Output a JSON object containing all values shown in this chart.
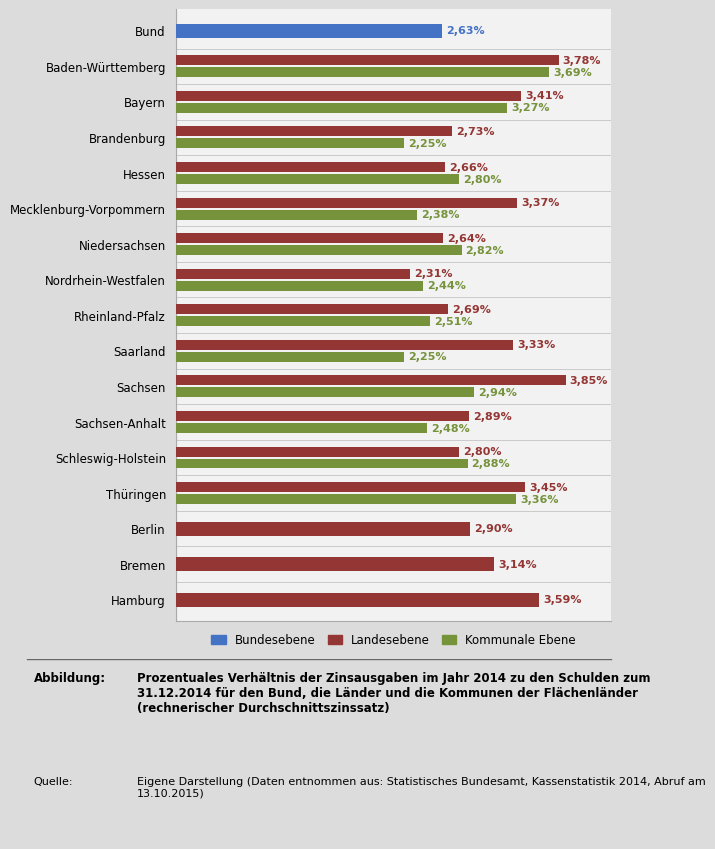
{
  "categories": [
    "Bund",
    "Baden-Württemberg",
    "Bayern",
    "Brandenburg",
    "Hessen",
    "Mecklenburg-Vorpommern",
    "Niedersachsen",
    "Nordrhein-Westfalen",
    "Rheinland-Pfalz",
    "Saarland",
    "Sachsen",
    "Sachsen-Anhalt",
    "Schleswig-Holstein",
    "Thüringen",
    "Berlin",
    "Bremen",
    "Hamburg"
  ],
  "bundesebene": [
    2.63,
    null,
    null,
    null,
    null,
    null,
    null,
    null,
    null,
    null,
    null,
    null,
    null,
    null,
    null,
    null,
    null
  ],
  "landesebene": [
    null,
    3.78,
    3.41,
    2.73,
    2.66,
    3.37,
    2.64,
    2.31,
    2.69,
    3.33,
    3.85,
    2.89,
    2.8,
    3.45,
    2.9,
    3.14,
    3.59
  ],
  "kommunale": [
    null,
    3.69,
    3.27,
    2.25,
    2.8,
    2.38,
    2.82,
    2.44,
    2.51,
    2.25,
    2.94,
    2.48,
    2.88,
    3.36,
    null,
    null,
    null
  ],
  "color_bund": "#4472C4",
  "color_land": "#943634",
  "color_kommun": "#76933C",
  "bg_color_outer": "#DCDCDC",
  "bg_color_chart": "#F2F2F2",
  "bg_color_caption": "#FFFFFF",
  "label_bund": "Bundesebene",
  "label_land": "Landesebene",
  "label_kommun": "Kommunale Ebene",
  "caption_label": "Abbildung:",
  "caption_title": "Prozentuales Verhältnis der Zinsausgaben im Jahr 2014 zu den Schulden zum\n31.12.2014 für den Bund, die Länder und die Kommunen der Flächenländer\n(rechnerischer Durchschnittszinssatz)",
  "source_label": "Quelle:",
  "source_text": "Eigene Darstellung (Daten entnommen aus: Statistisches Bundesamt, Kassenstatistik 2014, Abruf am\n13.10.2015)",
  "xlim_max": 4.3,
  "bar_height": 0.28,
  "label_fontsize": 8,
  "ytick_fontsize": 8.5,
  "separator_color": "#AAAAAA"
}
